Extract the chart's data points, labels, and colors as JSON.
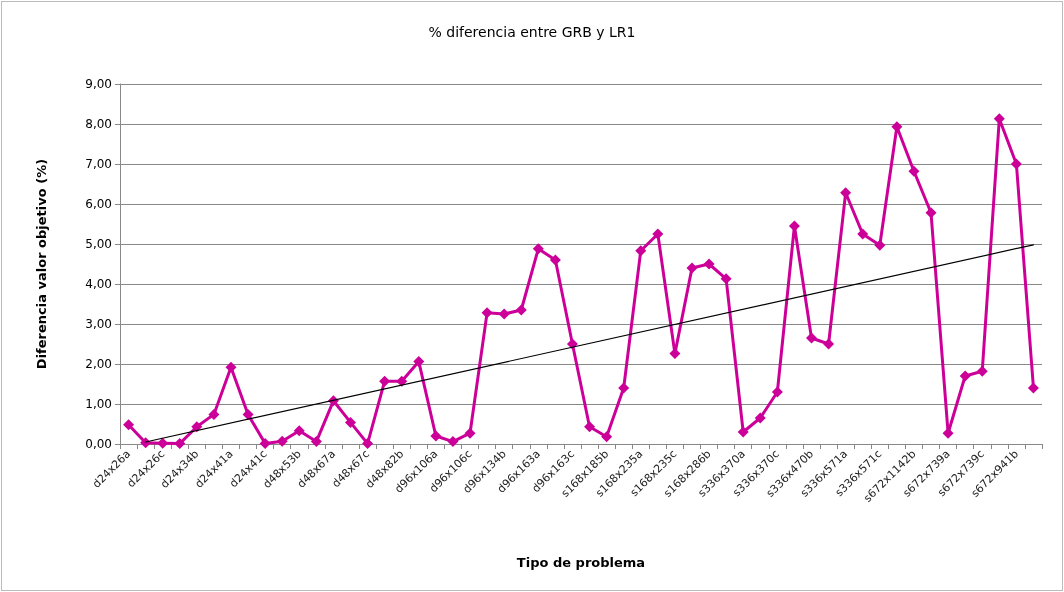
{
  "chart_data": {
    "type": "line",
    "title": "% diferencia entre GRB y LR1",
    "xlabel": "Tipo de problema",
    "ylabel": "Diferencia valor objetivo (%)",
    "categories": [
      "d24x26a",
      null,
      "d24x26c",
      null,
      "d24x34b",
      null,
      "d24x41a",
      null,
      "d24x41c",
      null,
      "d48x53b",
      null,
      "d48x67a",
      null,
      "d48x67c",
      null,
      "d48x82b",
      null,
      "d96x106a",
      null,
      "d96x106c",
      null,
      "d96x134b",
      null,
      "d96x163a",
      null,
      "d96x163c",
      null,
      "s168x185b",
      null,
      "s168x235a",
      null,
      "s168x235c",
      null,
      "s168x286b",
      null,
      "s336x370a",
      null,
      "s336x370c",
      null,
      "s336x470b",
      null,
      "s336x571a",
      null,
      "s336x571c",
      null,
      "s672x1142b",
      null,
      "s672x739a",
      null,
      "s672x739c",
      null,
      "s672x941b",
      null
    ],
    "series": [
      {
        "color": "#cc0099",
        "marker": "diamond",
        "values": [
          0.48,
          0.03,
          0.02,
          0.01,
          0.43,
          0.74,
          1.92,
          0.74,
          0.01,
          0.07,
          0.33,
          0.06,
          1.08,
          0.54,
          0.01,
          1.57,
          1.57,
          2.06,
          0.2,
          0.06,
          0.27,
          3.28,
          3.25,
          3.35,
          4.88,
          4.6,
          2.5,
          0.43,
          0.18,
          1.4,
          4.83,
          5.25,
          2.26,
          4.4,
          4.5,
          4.13,
          0.3,
          0.65,
          1.3,
          5.45,
          2.65,
          2.5,
          6.28,
          5.25,
          4.97,
          7.93,
          6.82,
          5.78,
          0.27,
          1.7,
          1.82,
          8.13,
          7.0,
          1.4
        ]
      },
      {
        "color": "#000000",
        "marker": "none",
        "values": [
          null,
          0.05,
          null,
          null,
          null,
          null,
          null,
          null,
          null,
          null,
          null,
          null,
          null,
          null,
          null,
          null,
          null,
          null,
          null,
          null,
          null,
          null,
          null,
          null,
          null,
          null,
          null,
          null,
          null,
          null,
          null,
          null,
          null,
          null,
          null,
          null,
          null,
          null,
          null,
          null,
          null,
          null,
          null,
          null,
          null,
          null,
          null,
          null,
          null,
          null,
          null,
          null,
          null,
          4.98
        ]
      }
    ],
    "ylim": [
      0,
      9
    ],
    "yticks": [
      {
        "value": 0,
        "label": "0,00"
      },
      {
        "value": 1,
        "label": "1,00"
      },
      {
        "value": 2,
        "label": "2,00"
      },
      {
        "value": 3,
        "label": "3,00"
      },
      {
        "value": 4,
        "label": "4,00"
      },
      {
        "value": 5,
        "label": "5,00"
      },
      {
        "value": 6,
        "label": "6,00"
      },
      {
        "value": 7,
        "label": "7,00"
      },
      {
        "value": 8,
        "label": "8,00"
      },
      {
        "value": 9,
        "label": "9,00"
      }
    ],
    "grid": "y",
    "line_style": "solid"
  }
}
